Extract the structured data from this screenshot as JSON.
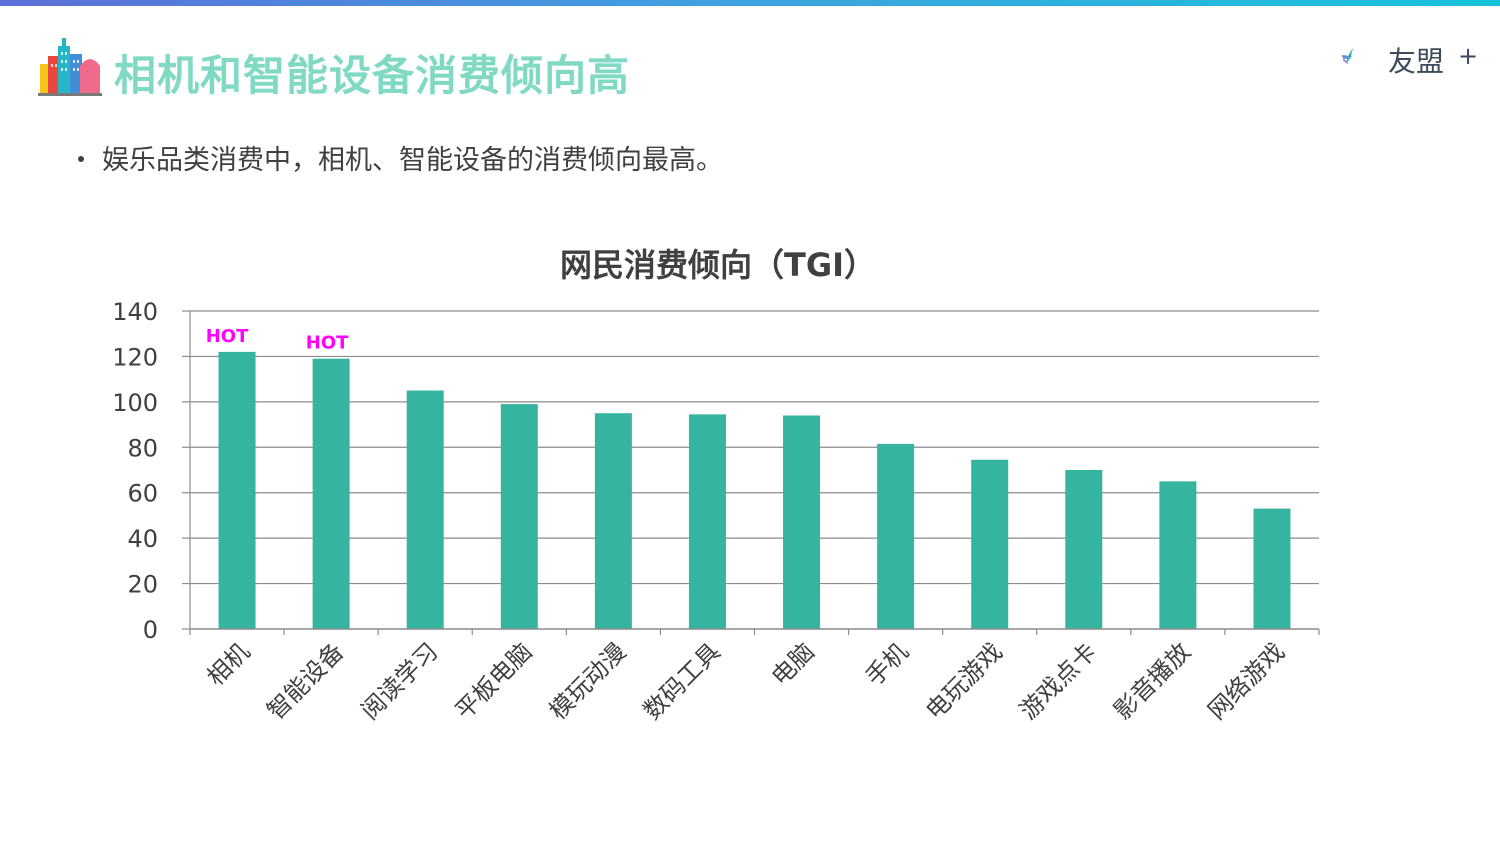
{
  "page": {
    "title": "相机和智能设备消费倾向高",
    "bullet": "娱乐品类消费中，相机、智能设备的消费倾向最高。"
  },
  "logo": {
    "text": "友盟",
    "plus": "+"
  },
  "colors": {
    "accent": "#7fd9c3",
    "bar": "#35b59f",
    "hot": "#ff00ff",
    "top_bar_start": "#5b6fd8",
    "top_bar_end": "#17c3d9"
  },
  "icons": {
    "title_icon": "city-buildings-icon",
    "logo_icon": "umeng-bird-icon"
  },
  "chart_data": {
    "type": "bar",
    "title": "网民消费倾向（TGI）",
    "categories": [
      "相机",
      "智能设备",
      "阅读学习",
      "平板电脑",
      "模玩动漫",
      "数码工具",
      "电脑",
      "手机",
      "电玩游戏",
      "游戏点卡",
      "影音播放",
      "网络游戏"
    ],
    "values": [
      122,
      119,
      105,
      99,
      95,
      94.5,
      94,
      81.5,
      74.5,
      70,
      65,
      53
    ],
    "ylim": [
      0,
      140
    ],
    "yticks": [
      0,
      20,
      40,
      60,
      80,
      100,
      120,
      140
    ],
    "grid": true,
    "annotations": [
      {
        "category": "相机",
        "text": "HOT"
      },
      {
        "category": "智能设备",
        "text": "HOT"
      }
    ]
  }
}
